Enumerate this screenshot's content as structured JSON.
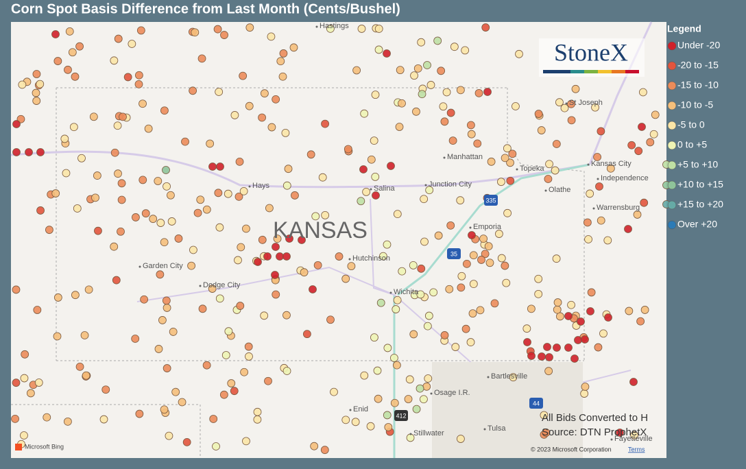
{
  "header": {
    "title": "Corn Spot Basis Difference from Last Month (Cents/Bushel)"
  },
  "legend": {
    "title": "Legend",
    "items": [
      {
        "label": "Under -20",
        "color": "#d0212a"
      },
      {
        "label": "-20 to -15",
        "color": "#e2553d"
      },
      {
        "label": "-15 to -10",
        "color": "#ec8c5a"
      },
      {
        "label": "-10 to -5",
        "color": "#f5bf7b"
      },
      {
        "label": "-5 to 0",
        "color": "#fbe6a7"
      },
      {
        "label": "0 to +5",
        "color": "#eef4b4"
      },
      {
        "label": "+5 to +10",
        "color": "#bfe0a4"
      },
      {
        "label": "+10 to +15",
        "color": "#8fc49a"
      },
      {
        "label": "+15 to +20",
        "color": "#66aaa6"
      },
      {
        "label": "Over +20",
        "color": "#2c7bb6"
      }
    ]
  },
  "map": {
    "logo": "StoneX",
    "state_label": "KANSAS",
    "places": [
      "Hastings",
      "St Joseph",
      "Manhattan",
      "Topeka",
      "Kansas City",
      "Independence",
      "Olathe",
      "Junction City",
      "Hays",
      "Salina",
      "Emporia",
      "Hutchinson",
      "Garden City",
      "Dodge City",
      "Wichita",
      "Warrensburg",
      "Bartlesville",
      "Osage I.R.",
      "Enid",
      "Stillwater",
      "Tulsa",
      "Fayetteville"
    ],
    "highways": [
      "335",
      "35",
      "412",
      "44"
    ]
  },
  "notes": [
    "All Bids Converted to H",
    "Source: DTN ProphetX"
  ],
  "attribution": {
    "bing": "Microsoft Bing",
    "copyright": "© 2023 Microsoft Corporation",
    "terms": "Terms"
  }
}
